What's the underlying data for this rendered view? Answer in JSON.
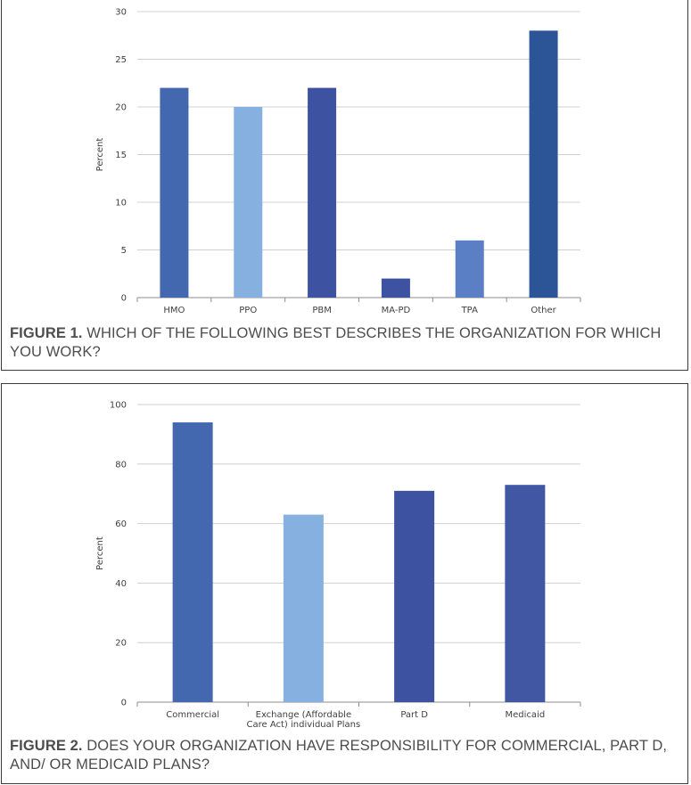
{
  "figures": [
    {
      "caption_label": "FIGURE 1.",
      "caption_text": "WHICH OF THE FOLLOWING BEST DESCRIBES THE ORGANIZATION FOR WHICH YOU WORK?"
    },
    {
      "caption_label": "FIGURE 2.",
      "caption_text": "DOES YOUR ORGANIZATION HAVE RESPONSIBILITY FOR COMMERCIAL, PART D, AND/ OR MEDICAID PLANS?"
    }
  ],
  "chart_data": [
    {
      "type": "bar",
      "ylabel": "Percent",
      "xlabel": "",
      "ylim": [
        0,
        30
      ],
      "yticks": [
        0,
        5,
        10,
        15,
        20,
        25,
        30
      ],
      "grid": true,
      "categories": [
        [
          "HMO"
        ],
        [
          "PPO"
        ],
        [
          "PBM"
        ],
        [
          "MA-PD"
        ],
        [
          "TPA"
        ],
        [
          "Other"
        ]
      ],
      "values": [
        22,
        20,
        22,
        2,
        6,
        28
      ],
      "colors": [
        "#4468b0",
        "#86b0e0",
        "#3d52a0",
        "#3d52a0",
        "#5b7fc4",
        "#2c5597"
      ]
    },
    {
      "type": "bar",
      "ylabel": "Percent",
      "xlabel": "",
      "ylim": [
        0,
        100
      ],
      "yticks": [
        0,
        20,
        40,
        60,
        80,
        100
      ],
      "grid": true,
      "categories": [
        [
          "Commercial"
        ],
        [
          "Exchange (Affordable",
          "Care Act) individual Plans"
        ],
        [
          "Part D"
        ],
        [
          "Medicaid"
        ]
      ],
      "values": [
        94,
        63,
        71,
        73
      ],
      "colors": [
        "#4468b0",
        "#86b0e0",
        "#3d52a0",
        "#4257a3"
      ]
    }
  ]
}
